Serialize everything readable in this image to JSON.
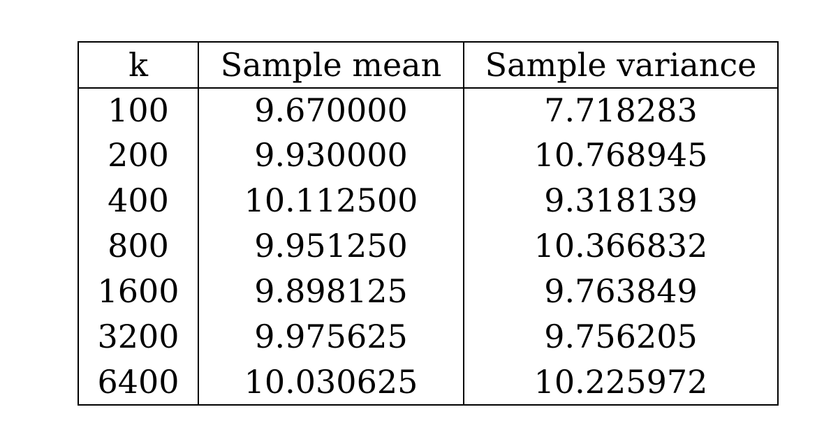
{
  "table": {
    "headers": [
      "k",
      "Sample mean",
      "Sample variance"
    ],
    "rows": [
      [
        "100",
        "9.670000",
        "7.718283"
      ],
      [
        "200",
        "9.930000",
        "10.768945"
      ],
      [
        "400",
        "10.112500",
        "9.318139"
      ],
      [
        "800",
        "9.951250",
        "10.366832"
      ],
      [
        "1600",
        "9.898125",
        "9.763849"
      ],
      [
        "3200",
        "9.975625",
        "9.756205"
      ],
      [
        "6400",
        "10.030625",
        "10.225972"
      ]
    ]
  }
}
